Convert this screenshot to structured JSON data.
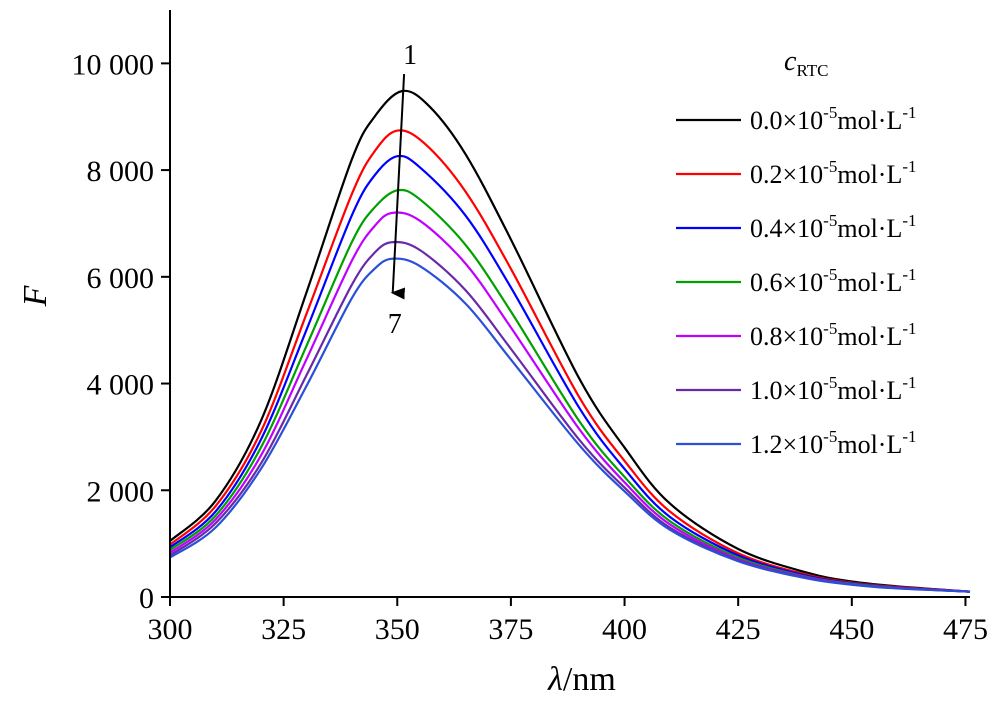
{
  "chart_data": {
    "type": "line",
    "title": "",
    "xlabel": {
      "italic": "λ",
      "rest": "/nm"
    },
    "ylabel": "F",
    "xlim": [
      300,
      476
    ],
    "ylim": [
      0,
      11000
    ],
    "xticks": [
      300,
      325,
      350,
      375,
      400,
      425,
      450,
      475
    ],
    "xtick_labels": [
      "300",
      "325",
      "350",
      "375",
      "400",
      "425",
      "450",
      "475"
    ],
    "yticks": [
      0,
      2000,
      4000,
      6000,
      8000,
      10000
    ],
    "ytick_labels": [
      "0",
      "2 000",
      "4 000",
      "6 000",
      "8 000",
      "10 000"
    ],
    "grid": false,
    "legend": {
      "placement": "right",
      "title_main": "c",
      "title_sub": "RTC"
    },
    "annotations": {
      "arrow_start_label": "1",
      "arrow_end_label": "7",
      "arrow_from": [
        351.5,
        9800
      ],
      "arrow_to": [
        349,
        5700
      ]
    },
    "series": [
      {
        "label": {
          "pre": "0.0×10",
          "sup1": "-5",
          "mid": "mol·L",
          "sup2": "-1"
        },
        "color": "#000000",
        "x": [
          300,
          310,
          320,
          330,
          340,
          345,
          351,
          357,
          365,
          375,
          390,
          400,
          410,
          425,
          440,
          450,
          460,
          476
        ],
        "y": [
          1050,
          1800,
          3300,
          5700,
          8200,
          9000,
          9480,
          9200,
          8300,
          6700,
          4100,
          2800,
          1750,
          900,
          460,
          290,
          200,
          100
        ]
      },
      {
        "label": {
          "pre": "0.2×10",
          "sup1": "-5",
          "mid": "mol·L",
          "sup2": "-1"
        },
        "color": "#ff0000",
        "x": [
          300,
          310,
          320,
          330,
          340,
          345,
          350,
          356,
          365,
          375,
          390,
          400,
          410,
          425,
          440,
          450,
          460,
          476
        ],
        "y": [
          980,
          1700,
          3100,
          5300,
          7550,
          8350,
          8740,
          8500,
          7600,
          6150,
          3750,
          2550,
          1600,
          820,
          420,
          270,
          190,
          100
        ]
      },
      {
        "label": {
          "pre": "0.4×10",
          "sup1": "-5",
          "mid": "mol·L",
          "sup2": "-1"
        },
        "color": "#0000ff",
        "x": [
          300,
          310,
          320,
          330,
          340,
          345,
          350,
          355,
          365,
          375,
          390,
          400,
          410,
          425,
          440,
          450,
          460,
          476
        ],
        "y": [
          930,
          1600,
          2950,
          5000,
          7150,
          7900,
          8260,
          8050,
          7150,
          5800,
          3550,
          2400,
          1500,
          780,
          400,
          260,
          180,
          100
        ]
      },
      {
        "label": {
          "pre": "0.6×10",
          "sup1": "-5",
          "mid": "mol·L",
          "sup2": "-1"
        },
        "color": "#00a000",
        "x": [
          300,
          310,
          320,
          330,
          340,
          345,
          350,
          355,
          365,
          375,
          390,
          400,
          410,
          425,
          440,
          450,
          460,
          476
        ],
        "y": [
          880,
          1520,
          2800,
          4700,
          6650,
          7300,
          7620,
          7450,
          6600,
          5350,
          3300,
          2250,
          1420,
          740,
          380,
          250,
          175,
          100
        ]
      },
      {
        "label": {
          "pre": "0.8×10",
          "sup1": "-5",
          "mid": "mol·L",
          "sup2": "-1"
        },
        "color": "#c000ff",
        "x": [
          300,
          310,
          320,
          330,
          340,
          345,
          349,
          355,
          365,
          375,
          390,
          400,
          410,
          425,
          440,
          450,
          460,
          476
        ],
        "y": [
          830,
          1450,
          2650,
          4450,
          6300,
          6950,
          7200,
          7050,
          6250,
          5050,
          3150,
          2150,
          1360,
          710,
          370,
          240,
          170,
          100
        ]
      },
      {
        "label": {
          "pre": "1.0×10",
          "sup1": "-5",
          "mid": "mol·L",
          "sup2": "-1"
        },
        "color": "#6a2aa8",
        "x": [
          300,
          310,
          320,
          330,
          340,
          345,
          349,
          355,
          365,
          375,
          390,
          400,
          410,
          425,
          440,
          450,
          460,
          476
        ],
        "y": [
          780,
          1380,
          2500,
          4150,
          5850,
          6450,
          6650,
          6500,
          5750,
          4650,
          2950,
          2050,
          1300,
          690,
          360,
          235,
          165,
          100
        ]
      },
      {
        "label": {
          "pre": "1.2×10",
          "sup1": "-5",
          "mid": "mol·L",
          "sup2": "-1"
        },
        "color": "#2a4fd8",
        "x": [
          300,
          310,
          320,
          330,
          340,
          345,
          349,
          355,
          365,
          375,
          390,
          400,
          410,
          425,
          440,
          450,
          460,
          476
        ],
        "y": [
          740,
          1300,
          2400,
          3950,
          5600,
          6150,
          6340,
          6200,
          5500,
          4450,
          2850,
          1980,
          1260,
          670,
          350,
          230,
          160,
          100
        ]
      }
    ]
  }
}
